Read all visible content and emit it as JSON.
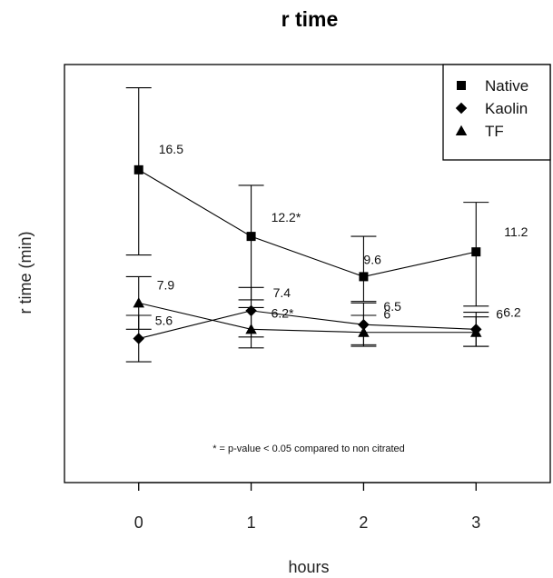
{
  "chart_data": {
    "type": "line",
    "title": "r time",
    "xlabel": "hours",
    "ylabel": "r time (min)",
    "x": [
      0,
      1,
      2,
      3
    ],
    "xlim": [
      -0.66,
      3.66
    ],
    "ylim": [
      -3.7,
      23.3
    ],
    "y_ticks_shown": false,
    "grid": false,
    "legend_position": "top-right",
    "series": [
      {
        "name": "Native",
        "marker": "square",
        "values": [
          16.5,
          12.2,
          9.6,
          11.2
        ],
        "error_low": [
          11.0,
          8.1,
          8.0,
          7.7
        ],
        "error_high": [
          21.8,
          15.5,
          12.2,
          14.4
        ],
        "labels": [
          "16.5",
          "12.2*",
          "9.6",
          "11.2"
        ]
      },
      {
        "name": "Kaolin",
        "marker": "diamond",
        "values": [
          5.6,
          7.4,
          6.5,
          6.2
        ],
        "error_low": [
          4.1,
          5.7,
          5.2,
          5.1
        ],
        "error_high": [
          7.1,
          8.9,
          7.9,
          7.3
        ],
        "labels": [
          "5.6",
          "7.4",
          "6.5",
          "6.2"
        ]
      },
      {
        "name": "TF",
        "marker": "triangle",
        "values": [
          7.9,
          6.2,
          6.0,
          6.0
        ],
        "error_low": [
          6.2,
          5.0,
          5.1,
          5.1
        ],
        "error_high": [
          9.6,
          7.6,
          7.1,
          7.0
        ],
        "labels": [
          "7.9",
          "6.2*",
          "6",
          "6"
        ]
      }
    ],
    "footnote": "* = p-value < 0.05 compared to non citrated"
  }
}
